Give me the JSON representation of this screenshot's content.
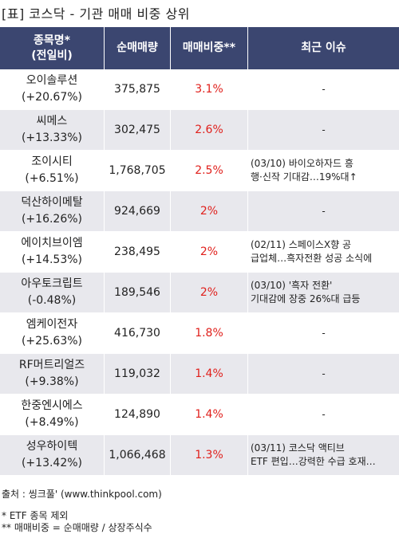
{
  "title": "[표] 코스닥 - 기관 매매 비중 상위",
  "headers": {
    "name": "종목명*\n(전일비)",
    "volume": "순매매량",
    "ratio": "매매비중**",
    "issue": "최근 이슈"
  },
  "rows": [
    {
      "name": "오이솔루션",
      "change": "(+20.67%)",
      "volume": "375,875",
      "ratio": "3.1%",
      "issue": [
        "-"
      ]
    },
    {
      "name": "씨메스",
      "change": "(+13.33%)",
      "volume": "302,475",
      "ratio": "2.6%",
      "issue": [
        "-"
      ]
    },
    {
      "name": "조이시티",
      "change": "(+6.51%)",
      "volume": "1,768,705",
      "ratio": "2.5%",
      "issue": [
        "(03/10) 바이오하자드 흥",
        "행·신작 기대감…19%대↑"
      ]
    },
    {
      "name": "덕산하이메탈",
      "change": "(+16.26%)",
      "volume": "924,669",
      "ratio": "2%",
      "issue": [
        "-"
      ]
    },
    {
      "name": "에이치브이엠",
      "change": "(+14.53%)",
      "volume": "238,495",
      "ratio": "2%",
      "issue": [
        "(02/11) 스페이스X향 공",
        "급업체…흑자전환 성공 소식에"
      ]
    },
    {
      "name": "아우토크립트",
      "change": "(-0.48%)",
      "volume": "189,546",
      "ratio": "2%",
      "issue": [
        "(03/10) '흑자 전환'",
        "기대감에 장중 26%대 급등"
      ]
    },
    {
      "name": "엠케이전자",
      "change": "(+25.63%)",
      "volume": "416,730",
      "ratio": "1.8%",
      "issue": [
        "-"
      ]
    },
    {
      "name": "RF머트리얼즈",
      "change": "(+9.38%)",
      "volume": "119,032",
      "ratio": "1.4%",
      "issue": [
        "-"
      ]
    },
    {
      "name": "한중엔시에스",
      "change": "(+8.49%)",
      "volume": "124,890",
      "ratio": "1.4%",
      "issue": [
        "-"
      ]
    },
    {
      "name": "성우하이텍",
      "change": "(+13.42%)",
      "volume": "1,066,468",
      "ratio": "1.3%",
      "issue": [
        "(03/11) 코스닥 액티브",
        "ETF 편입…강력한 수급 호재…"
      ]
    }
  ],
  "footer": {
    "source": "출처 : 씽크풀' (www.thinkpool.com)",
    "note1": "* ETF 종목 제외",
    "note2": "** 매매비중 = 순매매량 / 상장주식수"
  },
  "colors": {
    "header_bg": "#3b4670",
    "ratio_text": "#e0201c",
    "stripe": "#e8e8ed"
  }
}
